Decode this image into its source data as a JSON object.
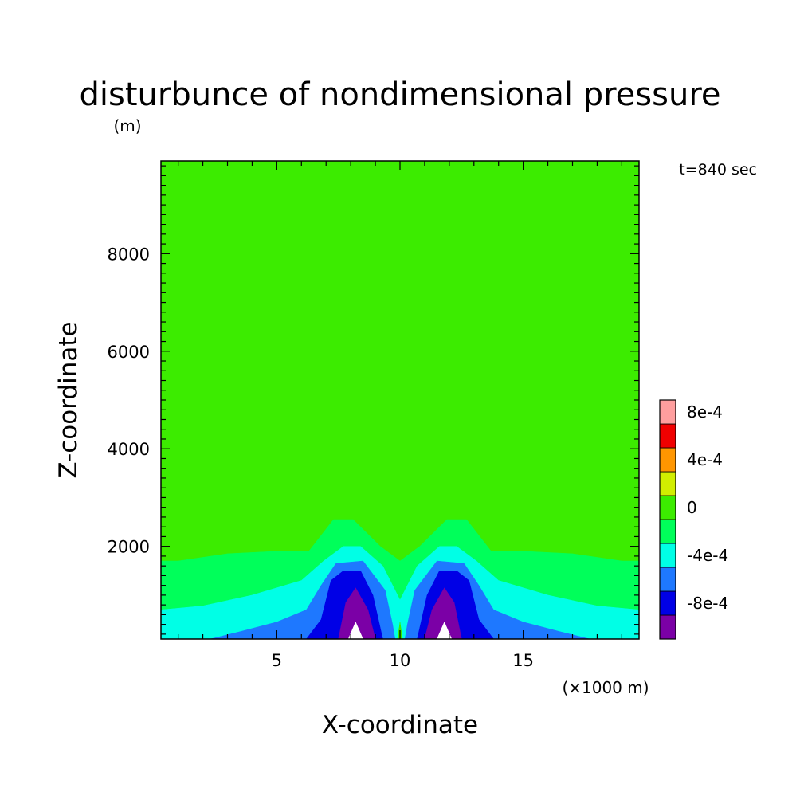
{
  "chart_data": {
    "type": "heatmap",
    "title": "disturbunce of nondimensional pressure",
    "subtitle": "(m)",
    "time_label": "t=840 sec",
    "xlabel": "X-coordinate",
    "x_unit_label": "(×1000 m)",
    "ylabel": "Z-coordinate",
    "xlim": [
      0.3,
      19.7
    ],
    "ylim": [
      100,
      9900
    ],
    "x_ticks": [
      5,
      10,
      15
    ],
    "x_tick_labels": [
      "5",
      "10",
      "15"
    ],
    "y_ticks": [
      2000,
      4000,
      6000,
      8000
    ],
    "y_tick_labels": [
      "2000",
      "4000",
      "6000",
      "8000"
    ],
    "grid": false,
    "colorbar": {
      "levels": [
        {
          "range": [
            -0.001,
            -0.0008
          ],
          "color": "#7b00a6"
        },
        {
          "range": [
            -0.0008,
            -0.0006
          ],
          "color": "#0000e6"
        },
        {
          "range": [
            -0.0006,
            -0.0004
          ],
          "color": "#1e78ff"
        },
        {
          "range": [
            -0.0004,
            -0.0002
          ],
          "color": "#00ffe6"
        },
        {
          "range": [
            -0.0002,
            0.0
          ],
          "color": "#00ff5a"
        },
        {
          "range": [
            0.0,
            0.0002
          ],
          "color": "#3cec00"
        },
        {
          "range": [
            0.0002,
            0.0004
          ],
          "color": "#d2ee00"
        },
        {
          "range": [
            0.0004,
            0.0006
          ],
          "color": "#ff9600"
        },
        {
          "range": [
            0.0006,
            0.0008
          ],
          "color": "#f00000"
        },
        {
          "range": [
            0.0008,
            0.001
          ],
          "color": "#ff9e9e"
        }
      ],
      "tick_values": [
        -0.0008,
        -0.0004,
        0.0,
        0.0004,
        0.0008
      ],
      "tick_labels": [
        "-8e-4",
        "-4e-4",
        "0",
        "4e-4",
        "8e-4"
      ]
    },
    "below_range_color": "#ffffff",
    "background_level": 5,
    "contour_regions": [
      {
        "level_index": 4,
        "polygon": [
          [
            0.3,
            1700
          ],
          [
            1.0,
            1700
          ],
          [
            3.0,
            1850
          ],
          [
            5.0,
            1900
          ],
          [
            6.3,
            1900
          ],
          [
            7.3,
            2550
          ],
          [
            8.1,
            2550
          ],
          [
            9.2,
            2000
          ],
          [
            10.0,
            1700
          ],
          [
            10.8,
            2000
          ],
          [
            11.9,
            2550
          ],
          [
            12.7,
            2550
          ],
          [
            13.7,
            1900
          ],
          [
            15.0,
            1900
          ],
          [
            17.0,
            1850
          ],
          [
            19.0,
            1700
          ],
          [
            19.7,
            1700
          ],
          [
            19.7,
            100
          ],
          [
            0.3,
            100
          ]
        ]
      },
      {
        "level_index": 3,
        "polygon": [
          [
            0.3,
            700
          ],
          [
            2.0,
            780
          ],
          [
            4.0,
            1000
          ],
          [
            6.0,
            1300
          ],
          [
            6.9,
            1700
          ],
          [
            7.7,
            2000
          ],
          [
            8.4,
            2000
          ],
          [
            9.3,
            1600
          ],
          [
            10.0,
            900
          ],
          [
            10.7,
            1600
          ],
          [
            11.6,
            2000
          ],
          [
            12.3,
            2000
          ],
          [
            13.1,
            1700
          ],
          [
            14.0,
            1300
          ],
          [
            16.0,
            1000
          ],
          [
            18.0,
            780
          ],
          [
            19.7,
            700
          ],
          [
            19.7,
            100
          ],
          [
            0.3,
            100
          ]
        ]
      },
      {
        "level_index": 2,
        "polygon": [
          [
            2.3,
            100
          ],
          [
            3.5,
            250
          ],
          [
            5.0,
            450
          ],
          [
            6.2,
            700
          ],
          [
            6.8,
            1200
          ],
          [
            7.4,
            1650
          ],
          [
            8.5,
            1700
          ],
          [
            9.4,
            1100
          ],
          [
            9.7,
            400
          ],
          [
            9.8,
            100
          ],
          [
            10.2,
            100
          ],
          [
            10.3,
            400
          ],
          [
            10.6,
            1100
          ],
          [
            11.5,
            1700
          ],
          [
            12.6,
            1650
          ],
          [
            13.2,
            1200
          ],
          [
            13.8,
            700
          ],
          [
            15.0,
            450
          ],
          [
            16.5,
            250
          ],
          [
            17.7,
            100
          ]
        ]
      },
      {
        "level_index": 1,
        "polygon": [
          [
            6.2,
            100
          ],
          [
            6.8,
            500
          ],
          [
            7.2,
            1300
          ],
          [
            7.7,
            1500
          ],
          [
            8.4,
            1500
          ],
          [
            8.9,
            1000
          ],
          [
            9.3,
            100
          ],
          [
            10.7,
            100
          ],
          [
            11.1,
            1000
          ],
          [
            11.6,
            1500
          ],
          [
            12.3,
            1500
          ],
          [
            12.8,
            1300
          ],
          [
            13.2,
            500
          ],
          [
            13.8,
            100
          ]
        ]
      },
      {
        "level_index": 0,
        "polygon": [
          [
            7.5,
            100
          ],
          [
            7.8,
            850
          ],
          [
            8.2,
            1150
          ],
          [
            8.7,
            700
          ],
          [
            9.0,
            100
          ],
          [
            11.0,
            100
          ],
          [
            11.3,
            700
          ],
          [
            11.8,
            1150
          ],
          [
            12.2,
            850
          ],
          [
            12.5,
            100
          ]
        ]
      },
      {
        "level_index": -1,
        "polygon": [
          [
            7.9,
            100
          ],
          [
            8.2,
            450
          ],
          [
            8.5,
            100
          ],
          [
            11.5,
            100
          ],
          [
            11.8,
            450
          ],
          [
            12.1,
            100
          ]
        ]
      },
      {
        "level_index": 5,
        "polygon": [
          [
            9.9,
            100
          ],
          [
            10.0,
            450
          ],
          [
            10.1,
            100
          ]
        ]
      }
    ]
  }
}
